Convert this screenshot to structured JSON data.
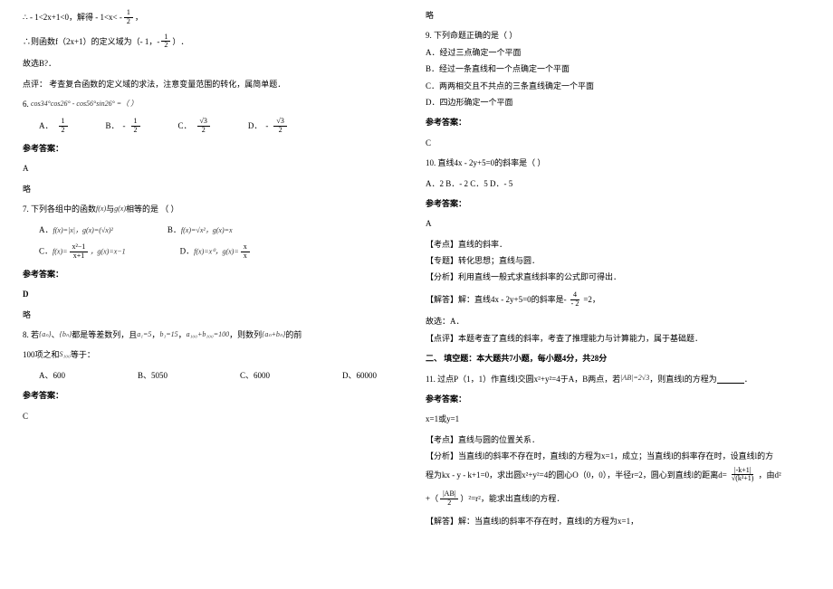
{
  "left": {
    "l1a": "∴ - 1<2x+1<0，解得 - 1<x< -",
    "l1b_num": "1",
    "l1b_den": "2",
    "l1c": "，",
    "l2a": "∴则函数f（2x+1）的定义域为",
    "l2b": "（- 1，-",
    "l2c_num": "1",
    "l2c_den": "2",
    "l2d": "）",
    "l2e": "．",
    "l3": "故选B?．",
    "l4": "点评：  考查复合函数的定义域的求法，注意变量范围的转化，属简单题．",
    "q6": "6.",
    "q6_expr": "cos34°cos26° - cos56°sin26° =（     ）",
    "q6a_num": "1",
    "q6a_den": "2",
    "q6b_num": "1",
    "q6b_den": "2",
    "q6c_num": "√3",
    "q6c_den": "2",
    "q6d_num": "√3",
    "q6d_den": "2",
    "optA": "A．",
    "optB": "B．",
    "optC": "C．",
    "optD": "D．",
    "ans_label": "参考答案：",
    "ans6": "A",
    "omit": "略",
    "q7": "7. 下列各组中的函数",
    "q7_fx": "f(x)",
    "q7_mid": "与",
    "q7_gx": "g(x)",
    "q7_end": "相等的是   （     ）",
    "q7a": "f(x)=|x|，g(x)=(√x)²",
    "q7b": "f(x)=√x²，g(x)=x",
    "q7c": "f(x)=",
    "q7c_num": "x²−1",
    "q7c_den": "x+1",
    "q7c2": "，g(x)=x−1",
    "q7d": "f(x)=x⁰，",
    "q7dg": "g(x)=",
    "q7d_num": "x",
    "q7d_den": "x",
    "ans7": "D",
    "q8a": "8. 若",
    "q8_an": "{aₙ}",
    "q8b": "、",
    "q8_bn": "{bₙ}",
    "q8c": "都是等差数列，且",
    "q8_a1": "a₁=5",
    "q8d": "，",
    "q8_b1": "b₁=15",
    "q8e": "，",
    "q8_sum": "a₁₀₀+b₁₀₀=100",
    "q8f": "，则数列",
    "q8_anbn": "{aₙ+bₙ}",
    "q8g": "的前",
    "q8h": "100项之和",
    "q8_s100": "S₁₀₀",
    "q8i": "等于：",
    "q8_optA": "A、600",
    "q8_optB": "B、5050",
    "q8_optC": "C、6000",
    "q8_optD": "D、60000",
    "ans8": "C"
  },
  "right": {
    "omit": "略",
    "q9": "9. 下列命题正确的是（   ）",
    "q9a": "A．经过三点确定一个平面",
    "q9b": "B．经过一条直线和一个点确定一个平面",
    "q9c": "C．两两相交且不共点的三条直线确定一个平面",
    "q9d": "D．四边形确定一个平面",
    "ans_label": "参考答案：",
    "ans9": "C",
    "q10": "10. 直线4x - 2y+5=0的斜率是（     ）",
    "q10_opts": "A．2    B．- 2  C．5    D．- 5",
    "ans10": "A",
    "kd": "【考点】直线的斜率．",
    "zt": "【专题】转化思想；直线与圆．",
    "fx": "【分析】利用直线一般式求直线斜率的公式即可得出．",
    "jd_a": "【解答】解：直线4x - 2y+5=0的斜率是",
    "jd_num": "4",
    "jd_neg": "-",
    "jd_den": "- 2",
    "jd_b": "=2，",
    "gx": "故选：A．",
    "dp": "【点评】本题考查了直线的斜率，考查了推理能力与计算能力，属于基础题．",
    "sec2": "二、 填空题：本大题共7小题，每小题4分，共28分",
    "q11a": "11. 过点P（1，1）作直线l交圆x²+y²=4于A，B两点，若",
    "q11_ab": "|AB|=2√3",
    "q11b": "，则直线l的方程为",
    "q11c": "．",
    "ans11": "x=1或y=1",
    "kd11": "【考点】直线与圆的位置关系．",
    "fx11a": "【分析】当直线l的斜率不存在时，直线l的方程为x=1，成立；当直线l的斜率存在时，设直线l的方",
    "fx11b": "程为kx - y - k+1=0，求出圆x²+y²=4的圆心O（0，0），半径r=2，圆心到直线l的距离d=",
    "fx11_num": "|-k+1|",
    "fx11_den": "√(k²+1)",
    "fx11c": "，由d²",
    "fx11d": "+（",
    "fx11_num2": "|AB|",
    "fx11_den2": "2",
    "fx11e": "）²=r²，能求出直线l的方程．",
    "jd11": "【解答】解：当直线l的斜率不存在时，直线l的方程为x=1，"
  }
}
